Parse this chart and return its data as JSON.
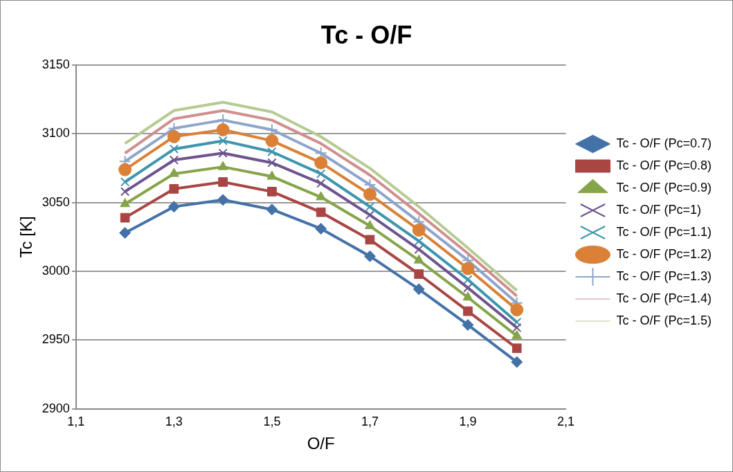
{
  "chart_data": {
    "type": "line",
    "title": "Tc - O/F",
    "xlabel": "O/F",
    "ylabel": "Tc [K]",
    "x": [
      1.2,
      1.3,
      1.4,
      1.5,
      1.6,
      1.7,
      1.8,
      1.9,
      2.0
    ],
    "xlim": [
      1.1,
      2.1
    ],
    "xticks": [
      {
        "value": 1.1,
        "label": "1,1"
      },
      {
        "value": 1.3,
        "label": "1,3"
      },
      {
        "value": 1.5,
        "label": "1,5"
      },
      {
        "value": 1.7,
        "label": "1,7"
      },
      {
        "value": 1.9,
        "label": "1,9"
      },
      {
        "value": 2.1,
        "label": "2,1"
      }
    ],
    "ylim": [
      2900,
      3150
    ],
    "yticks": [
      2900,
      2950,
      3000,
      3050,
      3100,
      3150
    ],
    "grid": "y",
    "legend": "right",
    "series": [
      {
        "name": "Tc - O/F (Pc=0.7)",
        "color": "#4472a8",
        "marker": "diamond",
        "values": [
          3028,
          3047,
          3052,
          3045,
          3031,
          3011,
          2987,
          2961,
          2934
        ]
      },
      {
        "name": "Tc - O/F (Pc=0.8)",
        "color": "#a94543",
        "marker": "square",
        "values": [
          3039,
          3060,
          3065,
          3058,
          3043,
          3023,
          2998,
          2971,
          2944
        ]
      },
      {
        "name": "Tc - O/F (Pc=0.9)",
        "color": "#86a44a",
        "marker": "triangle",
        "values": [
          3049,
          3071,
          3076,
          3069,
          3054,
          3033,
          3008,
          2981,
          2953
        ]
      },
      {
        "name": "Tc - O/F (Pc=1)",
        "color": "#6e548d",
        "marker": "cross",
        "values": [
          3058,
          3081,
          3086,
          3079,
          3064,
          3041,
          3016,
          2988,
          2959
        ]
      },
      {
        "name": "Tc - O/F (Pc=1.1)",
        "color": "#3d96ae",
        "marker": "cross",
        "values": [
          3065,
          3089,
          3095,
          3087,
          3071,
          3047,
          3022,
          2994,
          2963
        ]
      },
      {
        "name": "Tc - O/F (Pc=1.2)",
        "color": "#da8137",
        "marker": "circle",
        "values": [
          3074,
          3098,
          3103,
          3095,
          3079,
          3056,
          3030,
          3002,
          2972
        ]
      },
      {
        "name": "Tc - O/F (Pc=1.3)",
        "color": "#8ea5cb",
        "marker": "plus",
        "values": [
          3080,
          3104,
          3110,
          3103,
          3086,
          3063,
          3036,
          3008,
          2977
        ]
      },
      {
        "name": "Tc - O/F (Pc=1.4)",
        "color": "#cf8f8e",
        "marker": "none",
        "values": [
          3086,
          3111,
          3117,
          3110,
          3093,
          3070,
          3042,
          3013,
          2982
        ]
      },
      {
        "name": "Tc - O/F (Pc=1.5)",
        "color": "#b5cb92",
        "marker": "none",
        "values": [
          3093,
          3117,
          3123,
          3116,
          3098,
          3075,
          3047,
          3017,
          2986
        ]
      }
    ]
  }
}
